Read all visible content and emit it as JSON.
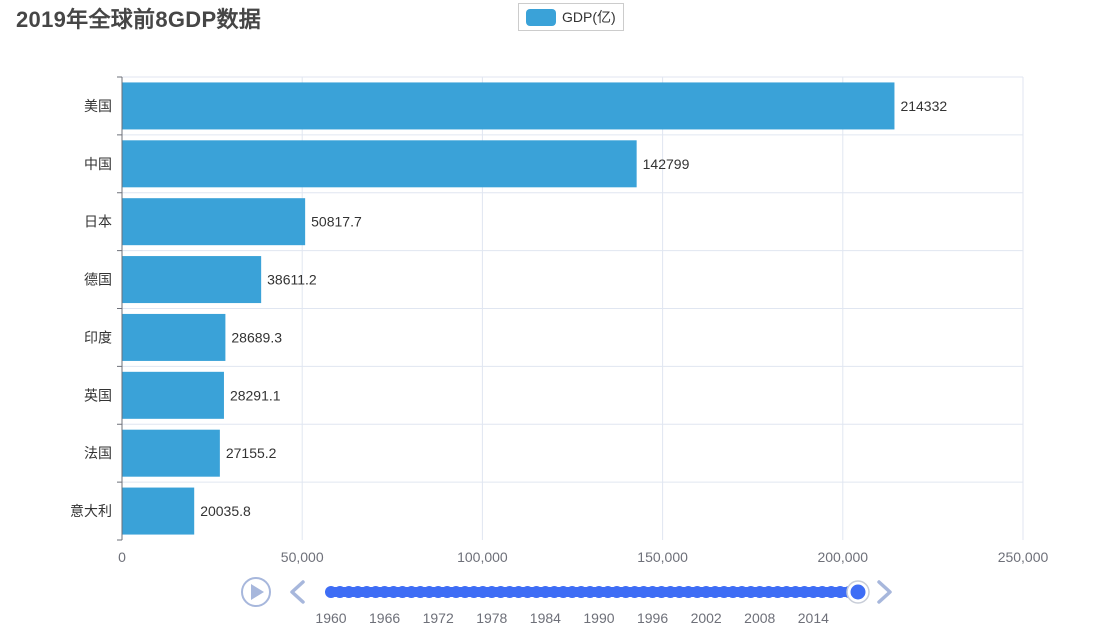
{
  "chart_data": {
    "type": "bar",
    "orientation": "horizontal",
    "title": "2019年全球前8GDP数据",
    "categories": [
      "美国",
      "中国",
      "日本",
      "德国",
      "印度",
      "英国",
      "法国",
      "意大利"
    ],
    "series": [
      {
        "name": "GDP(亿)",
        "values": [
          214332,
          142799,
          50817.7,
          38611.2,
          28689.3,
          28291.1,
          27155.2,
          20035.8
        ]
      }
    ],
    "data_labels": [
      "214332",
      "142799",
      "50817.7",
      "38611.2",
      "28689.3",
      "28291.1",
      "27155.2",
      "20035.8"
    ],
    "xlim": [
      0,
      250000
    ],
    "x_ticks": [
      0,
      50000,
      100000,
      150000,
      200000,
      250000
    ],
    "x_tick_labels": [
      "0",
      "50,000",
      "100,000",
      "150,000",
      "200,000",
      "250,000"
    ],
    "xlabel": "",
    "ylabel": "",
    "grid": true,
    "legend_position": "top-center"
  },
  "colors": {
    "bar": "#3aa2d8",
    "timeline": "#3e6df5",
    "control": "#a7b7dc"
  },
  "timeline": {
    "labels": [
      "1960",
      "1966",
      "1972",
      "1978",
      "1984",
      "1990",
      "1996",
      "2002",
      "2008",
      "2014"
    ],
    "start_year": 1960,
    "end_year": 2019,
    "current_year": 2019
  },
  "icons": {
    "play": "play-icon",
    "prev": "chevron-left-icon",
    "next": "chevron-right-icon"
  }
}
